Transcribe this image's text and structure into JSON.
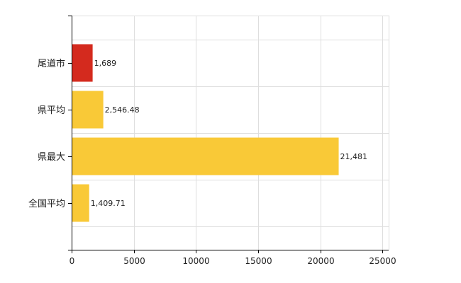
{
  "colors": {
    "highlight": "#d42a1e",
    "default": "#f9c937",
    "grid": "#dedede",
    "axis": "#000000",
    "text": "#222222"
  },
  "chart_data": {
    "type": "bar",
    "orientation": "horizontal",
    "categories": [
      "尾道市",
      "県平均",
      "県最大",
      "全国平均"
    ],
    "values": [
      1689,
      2546.48,
      21481,
      1409.71
    ],
    "data_labels": [
      "1,689",
      "2,546.48",
      "21,481",
      "1,409.71"
    ],
    "highlight_index": 0,
    "x_ticks": [
      0,
      5000,
      10000,
      15000,
      20000,
      25000
    ],
    "x_tick_labels": [
      "0",
      "5000",
      "10000",
      "15000",
      "20000",
      "25000"
    ],
    "xlim": [
      0,
      25500
    ],
    "grid": true,
    "title": "",
    "xlabel": "",
    "ylabel": ""
  }
}
